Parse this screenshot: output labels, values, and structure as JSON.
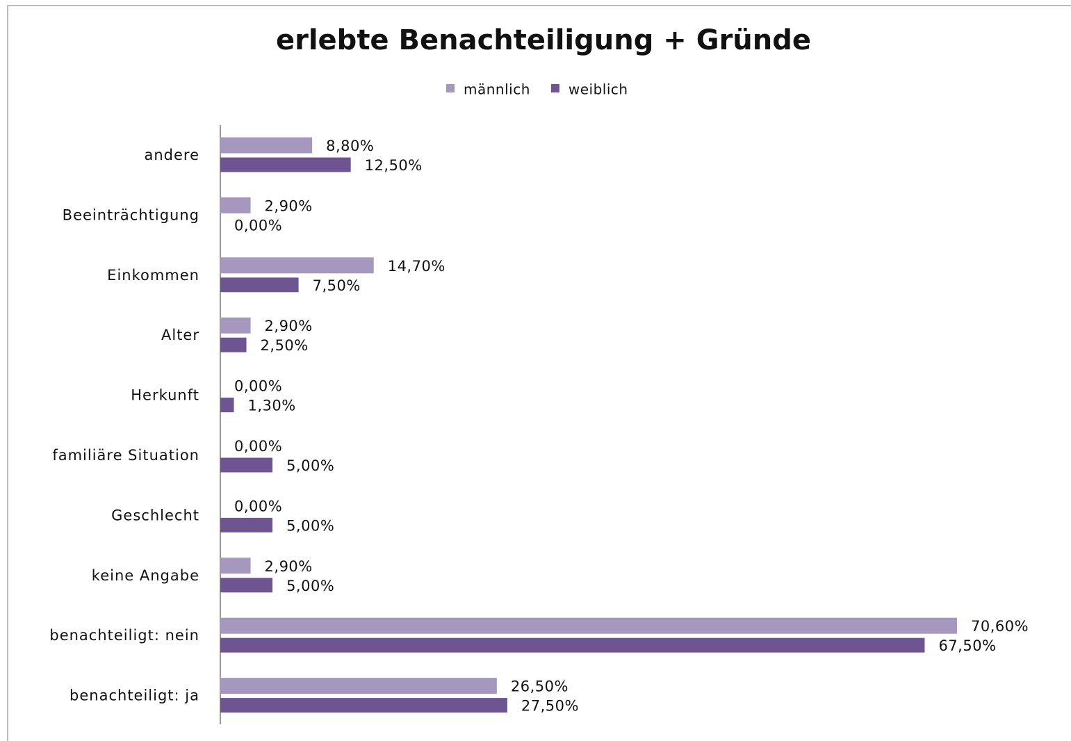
{
  "chart_data": {
    "type": "bar",
    "orientation": "horizontal",
    "title": "erlebte Benachteiligung + Gründe",
    "categories": [
      "andere",
      "Beeinträchtigung",
      "Einkommen",
      "Alter",
      "Herkunft",
      "familiäre Situation",
      "Geschlecht",
      "keine Angabe",
      "benachteiligt: nein",
      "benachteiligt: ja"
    ],
    "series": [
      {
        "name": "männlich",
        "color": "#a597bd",
        "values": [
          8.8,
          2.9,
          14.7,
          2.9,
          0,
          0,
          0,
          2.9,
          70.6,
          26.5
        ],
        "value_labels": [
          "8,80%",
          "2,90%",
          "14,70%",
          "2,90%",
          "0,00%",
          "0,00%",
          "0,00%",
          "2,90%",
          "70,60%",
          "26,50%"
        ]
      },
      {
        "name": "weiblich",
        "color": "#6e5490",
        "values": [
          12.5,
          0,
          7.5,
          2.5,
          1.3,
          5,
          5,
          5,
          67.5,
          27.5
        ],
        "value_labels": [
          "12,50%",
          "0,00%",
          "7,50%",
          "2,50%",
          "1,30%",
          "5,00%",
          "5,00%",
          "5,00%",
          "67,50%",
          "27,50%"
        ]
      }
    ],
    "legend": "top"
  }
}
